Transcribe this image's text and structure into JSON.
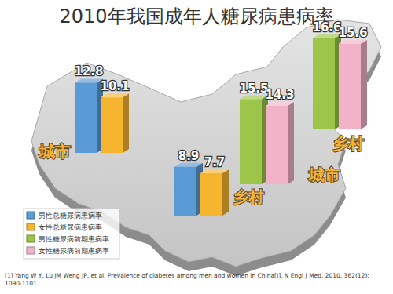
{
  "chart_data": {
    "type": "bar",
    "title": "2010年我国成年人糖尿病患病率",
    "categories": [
      "城市",
      "乡村",
      "城市",
      "乡村"
    ],
    "series": [
      {
        "name": "男性总糖尿病患病率",
        "color": "#5b9bd5",
        "values": [
          12.8,
          8.9,
          null,
          null
        ]
      },
      {
        "name": "女性总糖尿病患病率",
        "color": "#f5b52e",
        "values": [
          10.1,
          7.7,
          null,
          null
        ]
      },
      {
        "name": "男性糖尿病前期患病率",
        "color": "#9cc54a",
        "values": [
          null,
          null,
          15.5,
          16.6
        ]
      },
      {
        "name": "女性糖尿病前期患病率",
        "color": "#f2b3c9",
        "values": [
          null,
          null,
          14.3,
          15.6
        ]
      }
    ],
    "ylim": [
      0,
      20
    ],
    "tick_labels": false,
    "data_labels": true,
    "legend": "bottom-left",
    "annotations": [
      "[1] Yang W Y, Lu JM Weng JP, et al. Prevalence of diabetes among men and women in China[J]. N Engl J Med. 2010, 362(12): 1090-1101."
    ]
  }
}
